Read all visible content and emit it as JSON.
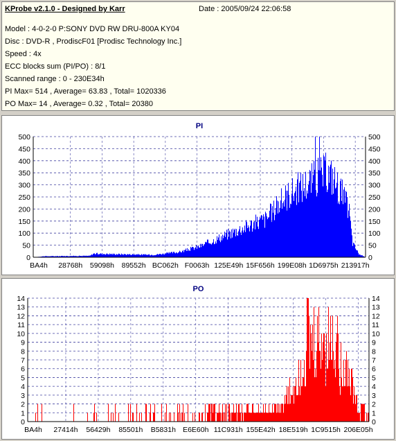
{
  "header": {
    "app_title": "KProbe v2.1.0 - Designed by Karr",
    "date": "Date : 2005/09/24 22:06:58"
  },
  "info_lines": [
    "Model : 4-0-2-0 P:SONY    DVD RW DRU-800A  KY04",
    "Disc : DVD-R , ProdiscF01 [Prodisc Technology Inc.]",
    "Speed : 4x",
    "ECC blocks sum (PI/PO) : 8/1",
    "Scanned range : 0 - 230E34h",
    "PI Max= 514 , Average= 63.83 , Total= 1020336",
    "PO Max= 14 , Average= 0.32 , Total= 20380"
  ],
  "chart_data": [
    {
      "type": "bar",
      "title": "PI",
      "color": "#0000ff",
      "ylim": [
        0,
        500
      ],
      "yticks": [
        0,
        50,
        100,
        150,
        200,
        250,
        300,
        350,
        400,
        450,
        500
      ],
      "x_tick_labels": [
        "BA4h",
        "28768h",
        "59098h",
        "89552h",
        "BC062h",
        "F0063h",
        "125E49h",
        "15F656h",
        "199E08h",
        "1D6975h",
        "213917h"
      ],
      "grid": true,
      "profile": {
        "x_fraction": [
          0.0,
          0.03,
          0.17,
          0.18,
          0.36,
          0.44,
          0.5,
          0.6,
          0.7,
          0.755,
          0.76,
          0.85,
          0.87,
          0.88,
          0.9,
          0.93,
          0.95,
          0.96,
          0.98,
          1.0
        ],
        "value": [
          0,
          4,
          6,
          15,
          10,
          22,
          45,
          105,
          160,
          245,
          255,
          330,
          345,
          350,
          335,
          260,
          190,
          60,
          12,
          0
        ]
      },
      "max": 514
    },
    {
      "type": "bar",
      "title": "PO",
      "color": "#ff0000",
      "ylim": [
        0,
        14
      ],
      "yticks": [
        0,
        1,
        2,
        3,
        4,
        5,
        6,
        7,
        8,
        9,
        10,
        11,
        12,
        13,
        14
      ],
      "x_tick_labels": [
        "BA4h",
        "27414h",
        "56429h",
        "85501h",
        "B5831h",
        "E6E60h",
        "11C931h",
        "155E42h",
        "18E519h",
        "1C9515h",
        "206E05h"
      ],
      "grid": true,
      "profile": {
        "x_fraction": [
          0.0,
          0.5,
          0.6,
          0.7,
          0.75,
          0.78,
          0.8,
          0.82,
          0.86,
          0.9,
          0.93,
          0.95,
          0.97,
          1.0
        ],
        "value": [
          0,
          0.3,
          0.6,
          1.2,
          2,
          4,
          6,
          8,
          9,
          9,
          7,
          4,
          1,
          0
        ]
      },
      "max": 14
    }
  ]
}
